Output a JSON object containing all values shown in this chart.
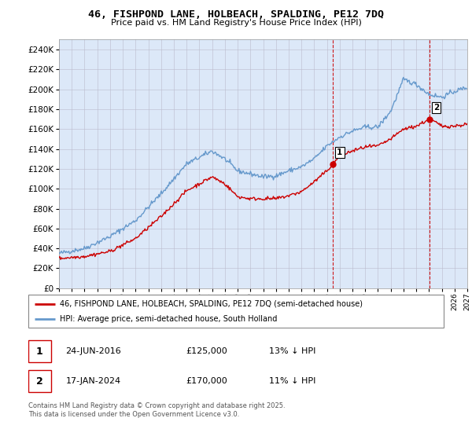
{
  "title": "46, FISHPOND LANE, HOLBEACH, SPALDING, PE12 7DQ",
  "subtitle": "Price paid vs. HM Land Registry's House Price Index (HPI)",
  "legend_label_red": "46, FISHPOND LANE, HOLBEACH, SPALDING, PE12 7DQ (semi-detached house)",
  "legend_label_blue": "HPI: Average price, semi-detached house, South Holland",
  "transaction1_date": "24-JUN-2016",
  "transaction1_price": "£125,000",
  "transaction1_hpi": "13% ↓ HPI",
  "transaction2_date": "17-JAN-2024",
  "transaction2_price": "£170,000",
  "transaction2_hpi": "11% ↓ HPI",
  "footer": "Contains HM Land Registry data © Crown copyright and database right 2025.\nThis data is licensed under the Open Government Licence v3.0.",
  "ylim": [
    0,
    250000
  ],
  "ytick_step": 20000,
  "background_color": "#dce8f8",
  "red_color": "#cc0000",
  "blue_color": "#6699cc",
  "vline_color": "#cc0000",
  "grid_color": "#bbbbcc",
  "t1_year": 2016.48,
  "t2_year": 2024.04,
  "t1_price": 125000,
  "t2_price": 170000,
  "hpi_key_years": [
    1995,
    1997,
    1999,
    2001,
    2003,
    2005,
    2007,
    2008,
    2009,
    2010,
    2011,
    2012,
    2013,
    2014,
    2015,
    2016,
    2017,
    2018,
    2019,
    2020,
    2021,
    2022,
    2023,
    2024,
    2025,
    2026,
    2027
  ],
  "hpi_key_prices": [
    35000,
    40000,
    52000,
    68000,
    95000,
    125000,
    138000,
    130000,
    118000,
    115000,
    112000,
    113000,
    118000,
    122000,
    130000,
    143000,
    152000,
    158000,
    162000,
    162000,
    178000,
    210000,
    205000,
    195000,
    192000,
    198000,
    202000
  ],
  "prop_key_years": [
    1995,
    1997,
    1999,
    2001,
    2003,
    2005,
    2007,
    2008,
    2009,
    2010,
    2011,
    2012,
    2013,
    2014,
    2015,
    2016,
    2016.48,
    2017,
    2018,
    2019,
    2020,
    2021,
    2022,
    2023,
    2024.04,
    2024.5,
    2025,
    2026,
    2027
  ],
  "prop_key_prices": [
    30000,
    32000,
    37000,
    50000,
    72000,
    98000,
    112000,
    105000,
    92000,
    90000,
    90000,
    90000,
    93000,
    97000,
    107000,
    118000,
    125000,
    133000,
    138000,
    142000,
    143000,
    150000,
    160000,
    163000,
    170000,
    167000,
    163000,
    163000,
    165000
  ]
}
